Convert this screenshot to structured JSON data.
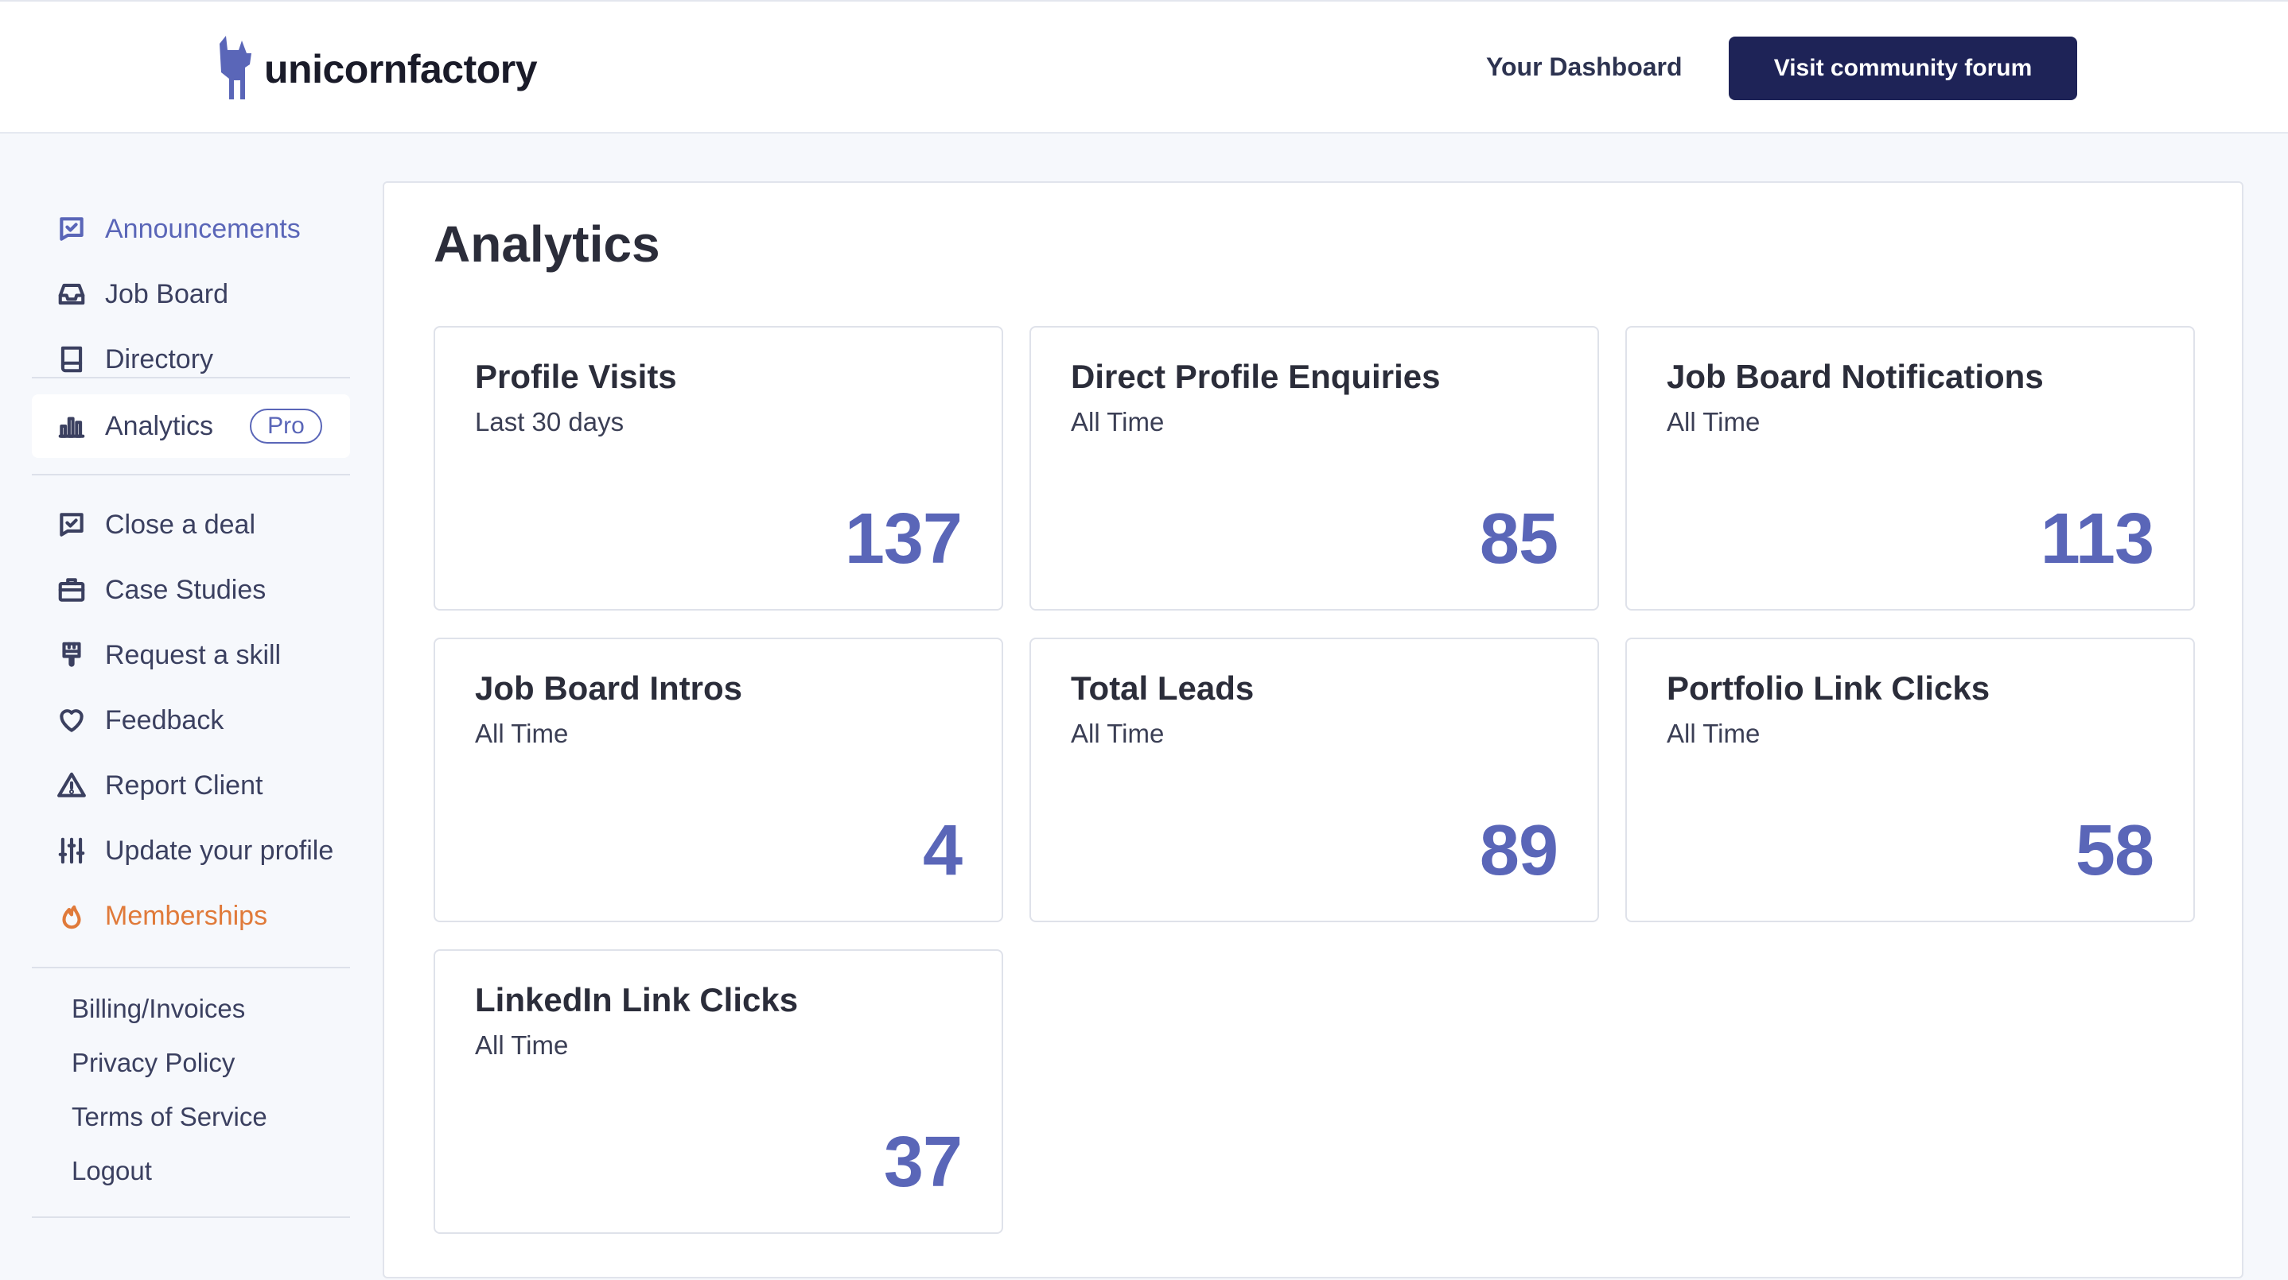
{
  "header": {
    "brand": "unicornfactory",
    "dashboard_link": "Your Dashboard",
    "forum_button": "Visit community forum"
  },
  "sidebar": {
    "items": [
      {
        "label": "Announcements",
        "icon": "announcement-check-icon"
      },
      {
        "label": "Job Board",
        "icon": "inbox-icon"
      },
      {
        "label": "Directory",
        "icon": "book-icon"
      },
      {
        "label": "Analytics",
        "icon": "bar-chart-icon",
        "badge": "Pro"
      },
      {
        "label": "Close a deal",
        "icon": "message-check-icon"
      },
      {
        "label": "Case Studies",
        "icon": "briefcase-icon"
      },
      {
        "label": "Request a skill",
        "icon": "brush-icon"
      },
      {
        "label": "Feedback",
        "icon": "heart-icon"
      },
      {
        "label": "Report Client",
        "icon": "warning-icon"
      },
      {
        "label": "Update your profile",
        "icon": "sliders-icon"
      },
      {
        "label": "Memberships",
        "icon": "flame-icon"
      }
    ],
    "links": [
      "Billing/Invoices",
      "Privacy Policy",
      "Terms of Service",
      "Logout"
    ],
    "colors": {
      "accent": "#5a66b8",
      "memberships": "#e07a3a"
    }
  },
  "main": {
    "title": "Analytics",
    "cards": [
      {
        "title": "Profile Visits",
        "subtitle": "Last 30 days",
        "value": "137"
      },
      {
        "title": "Direct Profile Enquiries",
        "subtitle": "All Time",
        "value": "85"
      },
      {
        "title": "Job Board Notifications",
        "subtitle": "All Time",
        "value": "113"
      },
      {
        "title": "Job Board Intros",
        "subtitle": "All Time",
        "value": "4"
      },
      {
        "title": "Total Leads",
        "subtitle": "All Time",
        "value": "89"
      },
      {
        "title": "Portfolio Link Clicks",
        "subtitle": "All Time",
        "value": "58"
      },
      {
        "title": "LinkedIn Link Clicks",
        "subtitle": "All Time",
        "value": "37"
      }
    ]
  }
}
